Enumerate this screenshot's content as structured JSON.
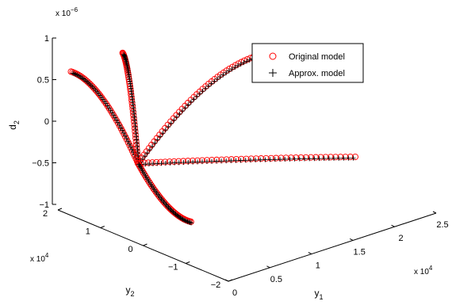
{
  "chart_data": {
    "type": "scatter",
    "projection": "3d",
    "axes": {
      "x": {
        "label_main": "y",
        "label_sub": "1",
        "ticks": [
          "0",
          "0.5",
          "1",
          "1.5",
          "2",
          "2.5"
        ],
        "range": [
          0,
          2.5
        ],
        "exponent_base": "x 10",
        "exponent_power": "4"
      },
      "y": {
        "label_main": "y",
        "label_sub": "2",
        "ticks": [
          "−2",
          "−1",
          "0",
          "1",
          "2"
        ],
        "range": [
          -2,
          2
        ],
        "exponent_base": "x 10",
        "exponent_power": "4"
      },
      "z": {
        "label_main": "d",
        "label_sub": "2",
        "ticks": [
          "−1",
          "−0.5",
          "0",
          "0.5",
          "1"
        ],
        "range": [
          -1,
          1
        ],
        "exponent_base": "x 10",
        "exponent_power": "−6"
      }
    },
    "series": [
      {
        "name": "Original model",
        "marker": "o",
        "color": "#ff0000"
      },
      {
        "name": "Approx. model",
        "marker": "+",
        "color": "#000000"
      }
    ],
    "branches": [
      {
        "end": {
          "y1": 0.22,
          "y2": 2.0,
          "d2": 0.6
        }
      },
      {
        "end": {
          "y1": 0.2,
          "y2": 0.75,
          "d2": 1.1
        }
      },
      {
        "end": {
          "y1": 2.05,
          "y2": 0.95,
          "d2": 0.45
        }
      },
      {
        "end": {
          "y1": 2.05,
          "y2": -1.1,
          "d2": -0.36
        }
      },
      {
        "end": {
          "y1": 0.15,
          "y2": -0.95,
          "d2": -0.55
        }
      }
    ],
    "origin": {
      "y1": 0,
      "y2": 0,
      "d2": 0
    },
    "legend_position": "top-right",
    "grid": false
  }
}
